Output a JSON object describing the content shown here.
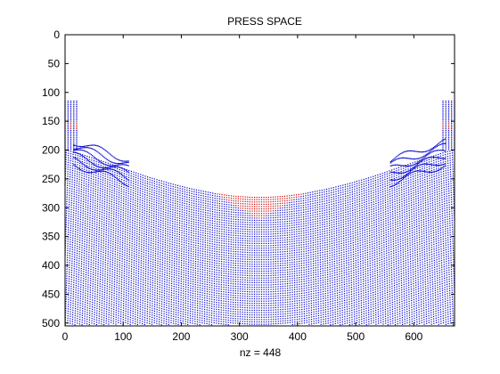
{
  "chart_data": {
    "type": "scatter",
    "title": "PRESS SPACE",
    "xlabel": "nz = 448",
    "ylabel": "",
    "xlim": [
      0,
      670
    ],
    "ylim": [
      505,
      0
    ],
    "y_reversed": true,
    "xticks": [
      0,
      100,
      200,
      300,
      400,
      500,
      600
    ],
    "yticks": [
      0,
      50,
      100,
      150,
      200,
      250,
      300,
      350,
      400,
      450,
      500
    ],
    "grid": false,
    "legend": "none",
    "series": [
      {
        "color": "#0000cc",
        "marker": "dot"
      },
      {
        "color": "#cc0000",
        "marker": "dot"
      }
    ],
    "surface_profile": {
      "x": [
        0,
        20,
        60,
        100,
        140,
        180,
        220,
        260,
        290,
        320,
        335,
        350,
        380,
        410,
        450,
        490,
        530,
        570,
        610,
        650,
        670
      ],
      "y_top": [
        200,
        205,
        218,
        232,
        246,
        258,
        268,
        276,
        280,
        282,
        282,
        282,
        280,
        276,
        268,
        258,
        246,
        232,
        218,
        205,
        200
      ]
    },
    "red_region": {
      "x_range": [
        240,
        430
      ],
      "y_range": [
        265,
        320
      ]
    },
    "edge_clusters": [
      {
        "x_range": [
          0,
          20
        ],
        "y_range": [
          115,
          200
        ]
      },
      {
        "x_range": [
          650,
          670
        ],
        "y_range": [
          115,
          200
        ]
      }
    ]
  }
}
